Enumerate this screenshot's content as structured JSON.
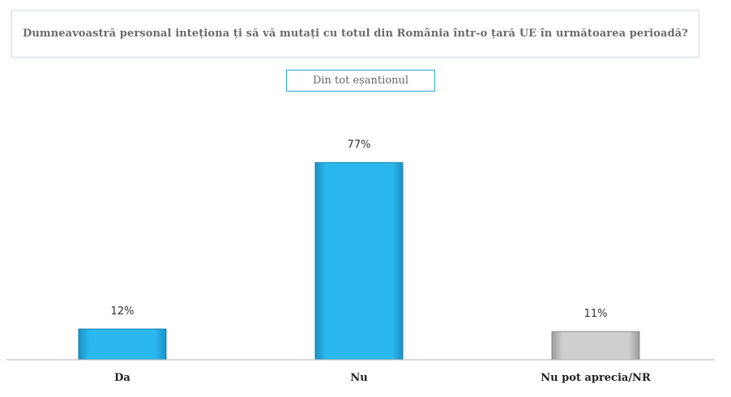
{
  "header": {
    "title": "Dumneavoastră personal inteționa ți să vă mutați cu totul din România într-o țară UE în următoarea perioadă?",
    "subtitle": "Din tot eșantionul"
  },
  "chart_data": {
    "type": "bar",
    "title": "Dumneavoastră personal inteționa ți să vă mutați cu totul din România într-o țară UE în următoarea perioadă?",
    "subtitle": "Din tot eșantionul",
    "categories": [
      "Da",
      "Nu",
      "Nu pot aprecia/NR"
    ],
    "values": [
      12,
      77,
      11
    ],
    "value_labels": [
      "12%",
      "77%",
      "11%"
    ],
    "colors": [
      "#29b9f0",
      "#29b9f0",
      "#c9c9c9"
    ],
    "ylim": [
      0,
      100
    ],
    "grid": false,
    "legend": "none"
  }
}
